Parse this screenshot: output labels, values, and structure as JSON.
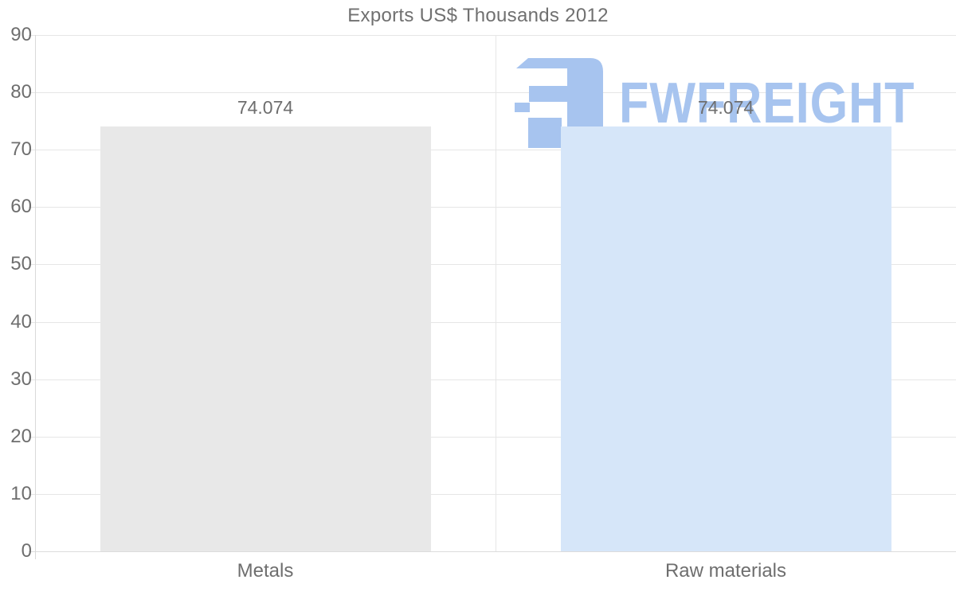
{
  "chart_data": {
    "type": "bar",
    "title": "Exports US$ Thousands 2012",
    "categories": [
      "Metals",
      "Raw materials"
    ],
    "values": [
      74.074,
      74.074
    ],
    "value_labels": [
      "74.074",
      "74.074"
    ],
    "bar_colors": [
      "#e8e8e8",
      "#d6e6f9"
    ],
    "ylim": [
      0,
      90
    ],
    "yticks": [
      0,
      10,
      20,
      30,
      40,
      50,
      60,
      70,
      80,
      90
    ],
    "xlabel": "",
    "ylabel": "",
    "grid": true,
    "legend_position": "none"
  },
  "watermark": {
    "text": "FWFREIGHT",
    "color": "#a7c4ef",
    "icon": "fwfreight-logo-icon"
  },
  "colors": {
    "title": "#707070",
    "tick_label": "#6e6e6e",
    "value_label": "#6e6e6e",
    "gridline": "#e6e6e6",
    "axis_line": "#d9d9d9",
    "background": "#ffffff"
  }
}
